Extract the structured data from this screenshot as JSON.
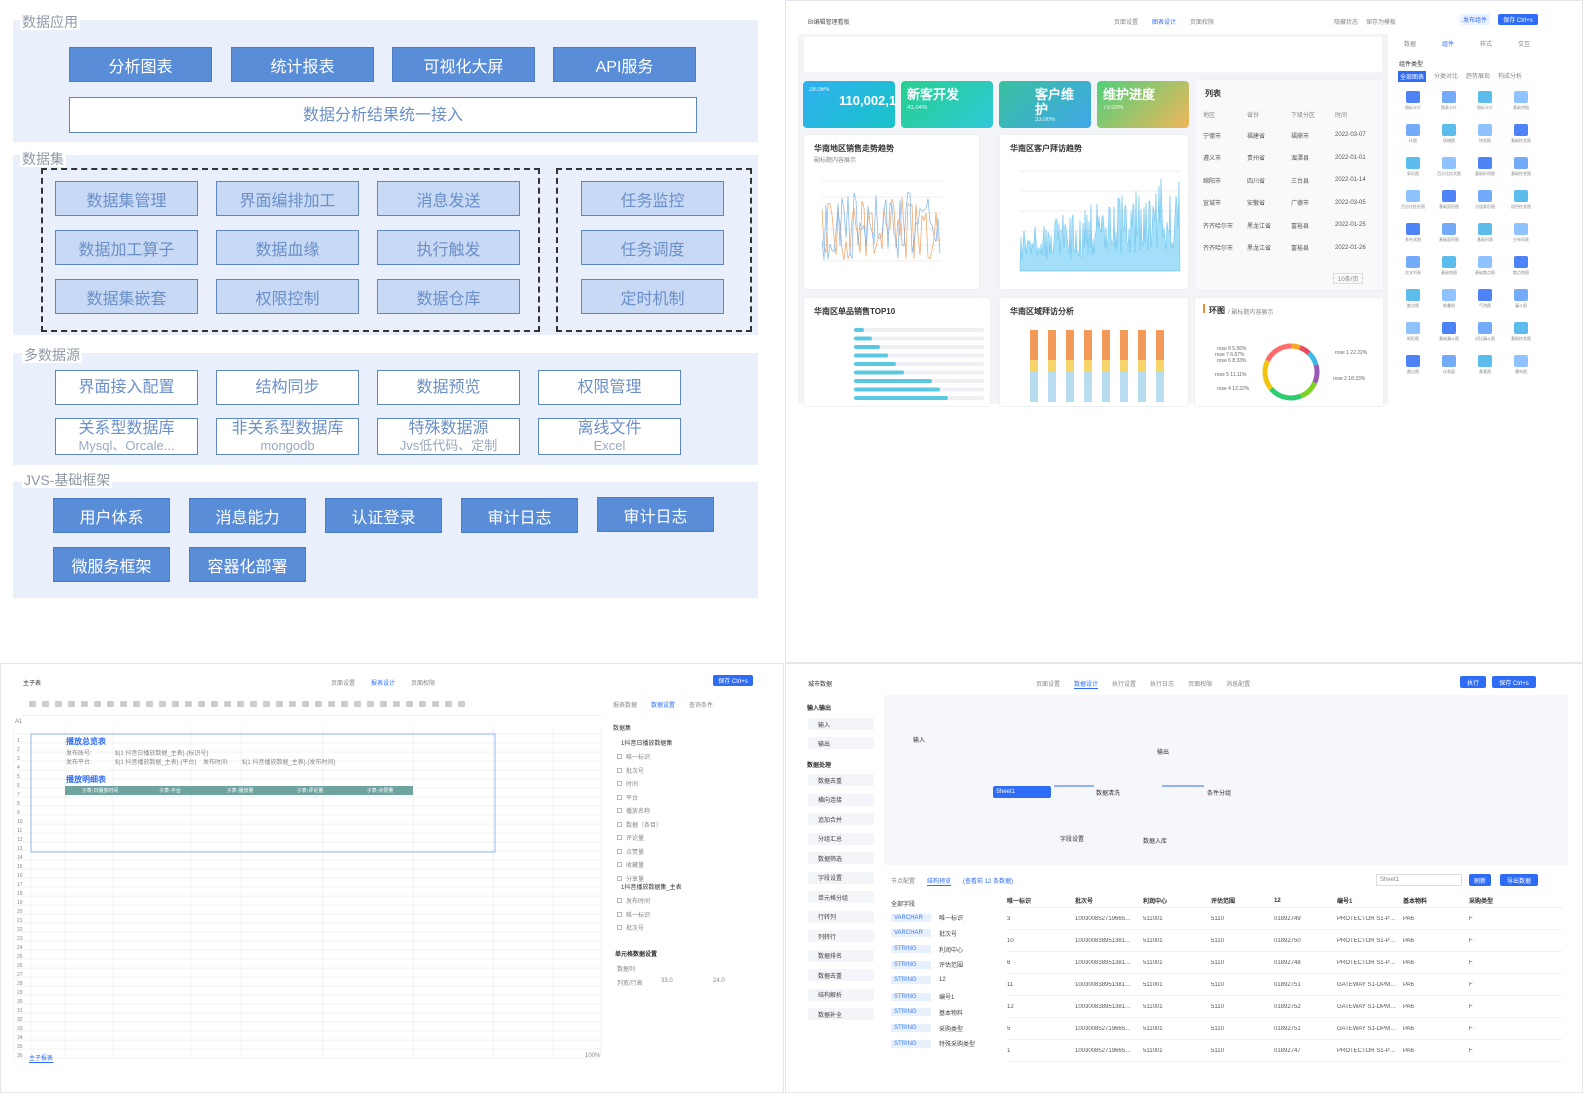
{
  "q1": {
    "sections": {
      "app": "数据应用",
      "dataset": "数据集",
      "sources": "多数据源",
      "base": "JVS-基础框架"
    },
    "app_buttons": [
      "分析图表",
      "统计报表",
      "可视化大屏",
      "API服务"
    ],
    "app_bar": "数据分析结果统一接入",
    "dataset_left": [
      "数据集管理",
      "界面编排加工",
      "消息发送",
      "数据加工算子",
      "数据血缘",
      "执行触发",
      "数据集嵌套",
      "权限控制",
      "数据仓库"
    ],
    "dataset_right": [
      "任务监控",
      "任务调度",
      "定时机制"
    ],
    "source_top": [
      "界面接入配置",
      "结构同步",
      "数据预览",
      "权限管理"
    ],
    "source_bottom": [
      {
        "t": "关系型数据库",
        "s": "Mysql、Orcale..."
      },
      {
        "t": "非关系型数据库",
        "s": "mongodb"
      },
      {
        "t": "特殊数据源",
        "s": "Jvs低代码、定制"
      },
      {
        "t": "离线文件",
        "s": "Excel"
      }
    ],
    "base_row1": [
      "用户体系",
      "消息能力",
      "认证登录",
      "审计日志",
      "审计日志"
    ],
    "base_row2": [
      "微服务框架",
      "容器化部署"
    ]
  },
  "q2": {
    "title": "BI编辑管理看板",
    "tabs": [
      "页面设置",
      "图表设计",
      "页面权限"
    ],
    "top_actions": [
      "隐藏状态",
      "保存为模板"
    ],
    "buttons": {
      "publish": "发布组件",
      "save": "保存 Ctrl+s"
    },
    "right_tabs": [
      "数据",
      "组件",
      "样式",
      "交互"
    ],
    "palette_title": "组件类型",
    "palette_filters": [
      "全部图表",
      "分类对比",
      "趋势展现",
      "构成分析"
    ],
    "palette_labels": [
      "指标卡片",
      "图表卡片",
      "指标卡片",
      "基础饼图",
      "环图",
      "玫瑰图",
      "饼状图",
      "基础柱状图",
      "条形图",
      "百分比柱状图",
      "基础折线图",
      "基础柱状图",
      "百分比柱形图",
      "基础面积图",
      "分组条形图",
      "组合柱状图",
      "多柱状图",
      "基础面积图",
      "基础列表",
      "分布列表",
      "交叉列表",
      "基础地图",
      "基础散点图",
      "散点地图",
      "散点图",
      "堆叠图",
      "气泡图",
      "漏斗图",
      "矩形图",
      "基础漏斗图",
      "对比漏斗图",
      "基础柱状图",
      "雷达图",
      "仪表盘",
      "桑基图",
      "瀑布图"
    ],
    "kpis": [
      {
        "t": "110,002,1",
        "s": "28.06%"
      },
      {
        "t": "新客开发",
        "s": "41.04%"
      },
      {
        "t": "客户维护",
        "s": "33.00%"
      },
      {
        "t": "维护进度",
        "s": "73.00%"
      }
    ],
    "list": {
      "title": "列表",
      "headers": [
        "地区",
        "省份",
        "下级分区",
        "时间"
      ],
      "rows": [
        [
          "宁德市",
          "福建省",
          "福鼎市",
          "2022-03-07"
        ],
        [
          "遵义市",
          "贵州省",
          "湄潭县",
          "2022-01-01"
        ],
        [
          "绵阳市",
          "四川省",
          "三台县",
          "2022-01-14"
        ],
        [
          "宣城市",
          "安徽省",
          "广德市",
          "2022-03-05"
        ],
        [
          "齐齐哈尔市",
          "黑龙江省",
          "富裕县",
          "2022-01-25"
        ],
        [
          "齐齐哈尔市",
          "黑龙江省",
          "富裕县",
          "2022-01-26"
        ]
      ],
      "page_size": "10条/页"
    },
    "charts": {
      "sales_trend": "华南地区销售走势趋势",
      "sales_trend_sub": "副标题内容展示",
      "visit_trend": "华南区客户拜访趋势",
      "top10": "华南区单品销售TOP10",
      "visit_analysis": "华南区域拜访分析",
      "ring": "环图",
      "ring_sub": "/ 副标题内容展示"
    },
    "rose_labels": [
      "rose 8 5.56%",
      "rose 7 6.67%",
      "rose 6 8.33%",
      "rose 5 11.11%",
      "rose 4 12.22%",
      "rose 1 22.22%",
      "rose 2 18.33%"
    ]
  },
  "q3": {
    "title": "主子表",
    "tabs": [
      "页面设置",
      "报表设计",
      "页面权限"
    ],
    "save": "保存 Ctrl+s",
    "right_tabs": [
      "报表数据",
      "数据设置",
      "查询条件"
    ],
    "dataset_label": "数据集",
    "sheet": {
      "header1": "播放总览表",
      "row_a": [
        "发布账号:",
        "${1 抖音日播放数据_主表}.{标识号}"
      ],
      "row_b": [
        "发布平台:",
        "${1 抖音播放数据_主表}.{平台}",
        "发布时间:",
        "${1 抖音播放数据_主表}.{发布时间}"
      ],
      "header2": "播放明细表",
      "cols": [
        "子表-日播放时间",
        "子表-平台",
        "子表-播放量",
        "子表-评论量",
        "子表-点赞量"
      ],
      "cell_ref": "A1"
    },
    "fields": [
      "唯一标识",
      "批次号",
      "时间",
      "平台",
      "播放名称",
      "数据（条目）",
      "评论量",
      "点赞量",
      "收藏量",
      "分享量"
    ],
    "field_group1": "1抖音日播放数据集",
    "field_group2": "1抖音播放数据集_主表",
    "group2_fields": [
      "发布时间",
      "唯一标识",
      "批次号"
    ],
    "cell_setting": "单元格数据设置",
    "setting_labels": [
      "数据列",
      "列宽/行高"
    ],
    "setting_vals": [
      "33.0",
      "24.0"
    ],
    "sheet_tab": "主子报表",
    "zoom": "100%"
  },
  "q4": {
    "title": "城市数据",
    "tabs": [
      "页面设置",
      "数据设计",
      "执行设置",
      "执行日志",
      "页面权限",
      "消息配置"
    ],
    "buttons": {
      "run": "执行",
      "save": "保存 Ctrl+s"
    },
    "side_groups": [
      "输入输出",
      "数据处理"
    ],
    "side_io": [
      "输入",
      "输出"
    ],
    "side_process": [
      "数据去重",
      "横向连接",
      "追加合并",
      "分组汇总",
      "数据筛选",
      "字段设置",
      "单元格分组",
      "行转列",
      "列转行",
      "数据排名",
      "数据去重",
      "结构解析",
      "数据补全"
    ],
    "nodes": [
      "输入",
      "输出",
      "Sheet1",
      "数据清洗",
      "条件分组",
      "字段设置",
      "数据入库"
    ],
    "bottom_tabs": [
      "节点配置",
      "结构预览",
      "(查看前 12 条数据)"
    ],
    "sheet_label": "Sheet1",
    "refresh": "刷新",
    "all_fields": "全部字段",
    "field_list": [
      {
        "type": "VARCHAR",
        "name": "唯一标识"
      },
      {
        "type": "VARCHAR",
        "name": "批次号"
      },
      {
        "type": "STRING",
        "name": "利润中心"
      },
      {
        "type": "STRING",
        "name": "评估范围"
      },
      {
        "type": "STRING",
        "name": "12"
      },
      {
        "type": "STRING",
        "name": "编号1"
      },
      {
        "type": "STRING",
        "name": "基本物料"
      },
      {
        "type": "STRING",
        "name": "采购类型"
      },
      {
        "type": "STRING",
        "name": "特殊采购类型"
      }
    ],
    "table_headers": [
      "唯一标识",
      "批次号",
      "利润中心",
      "评估范围",
      "12",
      "编号1",
      "基本物料",
      "采购类型"
    ],
    "table_rows": [
      [
        "3",
        "100300852719665…",
        "511001",
        "5110",
        "01892749",
        "PROTECTOR S1-P…",
        "PA6",
        "F"
      ],
      [
        "10",
        "100300838951381…",
        "511001",
        "5110",
        "01892750",
        "PROTECTOR S1-P…",
        "PA6",
        "F"
      ],
      [
        "6",
        "100300838951381…",
        "511001",
        "5110",
        "01892748",
        "PROTECTOR S1-P…",
        "PA6",
        "F"
      ],
      [
        "11",
        "100300838951381…",
        "511001",
        "5110",
        "01892751",
        "GATEWAY S1-DPM…",
        "PA6",
        "F"
      ],
      [
        "12",
        "100300838951381…",
        "511001",
        "5110",
        "01892752",
        "GATEWAY S1-DPM…",
        "PA6",
        "F"
      ],
      [
        "5",
        "100300852719665…",
        "511001",
        "5110",
        "01892751",
        "GATEWAY S1-DPM…",
        "PA6",
        "F"
      ],
      [
        "1",
        "100300852719665…",
        "511001",
        "5110",
        "01892747",
        "PROTECTOR S1-P…",
        "PA6",
        "F"
      ]
    ],
    "export": "导出数据"
  }
}
